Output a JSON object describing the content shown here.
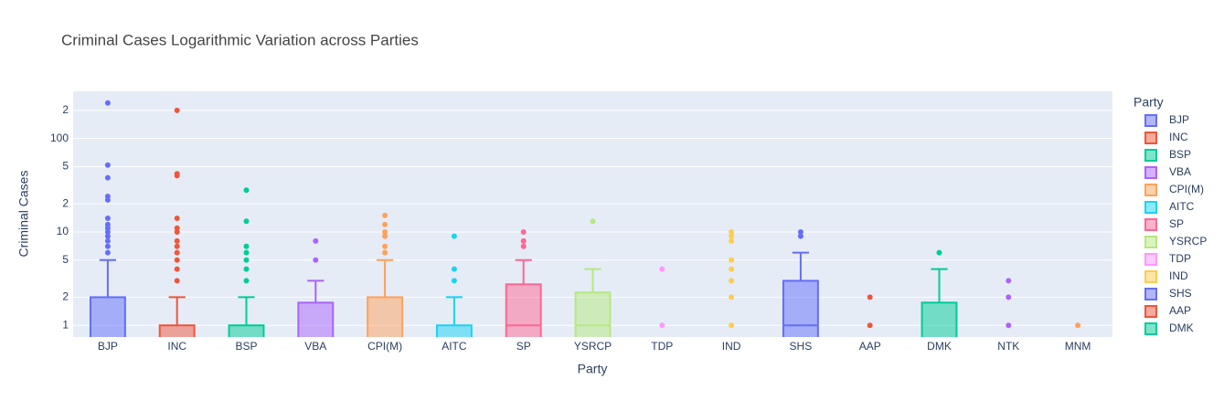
{
  "chart_data": {
    "type": "box",
    "title": "Criminal Cases Logarithmic Variation across Parties",
    "x_label": "Party",
    "y_label": "Criminal Cases",
    "legend_title": "Party",
    "log_y": true,
    "grid": true,
    "ylim": [
      0.75,
      320
    ],
    "yticks": [
      1,
      2,
      5,
      10,
      {
        "value": 20,
        "label": "2"
      },
      {
        "value": 50,
        "label": "5"
      },
      100,
      {
        "value": 200,
        "label": "2"
      }
    ],
    "categories": [
      "BJP",
      "INC",
      "BSP",
      "VBA",
      "CPI(M)",
      "AITC",
      "SP",
      "YSRCP",
      "TDP",
      "IND",
      "SHS",
      "AAP",
      "DMK",
      "NTK",
      "MNM"
    ],
    "series": [
      {
        "name": "BJP",
        "color": "#636efa",
        "lowerfence": 0,
        "q1": 0,
        "median": 0,
        "q3": 2,
        "upperfence": 5,
        "outliers": [
          6,
          7,
          8,
          9,
          10,
          11,
          12,
          14,
          22,
          24,
          38,
          52,
          240
        ]
      },
      {
        "name": "INC",
        "color": "#EF553B",
        "lowerfence": 0,
        "q1": 0,
        "median": 0,
        "q3": 1,
        "upperfence": 2,
        "outliers": [
          3,
          4,
          5,
          6,
          7,
          8,
          10,
          11,
          14,
          40,
          42,
          200
        ]
      },
      {
        "name": "BSP",
        "color": "#00cc96",
        "lowerfence": 0,
        "q1": 0,
        "median": 0,
        "q3": 1,
        "upperfence": 2,
        "outliers": [
          3,
          4,
          5,
          6,
          7,
          13,
          28
        ]
      },
      {
        "name": "VBA",
        "color": "#ab63fa",
        "lowerfence": 0,
        "q1": 0,
        "median": 0,
        "q3": 1.75,
        "upperfence": 3,
        "outliers": [
          5,
          8
        ]
      },
      {
        "name": "CPI(M)",
        "color": "#FFA15A",
        "lowerfence": 0,
        "q1": 0,
        "median": 0,
        "q3": 2,
        "upperfence": 5,
        "outliers": [
          6,
          7,
          9,
          10,
          12,
          15
        ]
      },
      {
        "name": "AITC",
        "color": "#19d3f3",
        "lowerfence": 0,
        "q1": 0,
        "median": 0,
        "q3": 1,
        "upperfence": 2,
        "outliers": [
          3,
          4,
          9
        ]
      },
      {
        "name": "SP",
        "color": "#FF6692",
        "lowerfence": 0,
        "q1": 0,
        "median": 1,
        "q3": 2.75,
        "upperfence": 5,
        "outliers": [
          7,
          8,
          10
        ]
      },
      {
        "name": "YSRCP",
        "color": "#B6E880",
        "lowerfence": 0,
        "q1": 0,
        "median": 1,
        "q3": 2.25,
        "upperfence": 4,
        "outliers": [
          13
        ]
      },
      {
        "name": "TDP",
        "color": "#FF97FF",
        "lowerfence": 0,
        "q1": 0,
        "median": 0,
        "q3": 0,
        "upperfence": 0,
        "outliers": [
          1,
          4
        ]
      },
      {
        "name": "IND",
        "color": "#FECB52",
        "lowerfence": 0,
        "q1": 0,
        "median": 0,
        "q3": 0,
        "upperfence": 0,
        "outliers": [
          1,
          2,
          3,
          4,
          5,
          8,
          9,
          10
        ]
      },
      {
        "name": "SHS",
        "color": "#636efa",
        "lowerfence": 0,
        "q1": 0,
        "median": 1,
        "q3": 3,
        "upperfence": 6,
        "outliers": [
          9,
          10
        ]
      },
      {
        "name": "AAP",
        "color": "#EF553B",
        "lowerfence": 0,
        "q1": 0,
        "median": 0,
        "q3": 0,
        "upperfence": 0,
        "outliers": [
          1,
          2
        ]
      },
      {
        "name": "DMK",
        "color": "#00cc96",
        "lowerfence": 0,
        "q1": 0,
        "median": 0,
        "q3": 1.75,
        "upperfence": 4,
        "outliers": [
          6
        ]
      },
      {
        "name": "NTK",
        "color": "#ab63fa",
        "lowerfence": 0,
        "q1": 0,
        "median": 0,
        "q3": 0,
        "upperfence": 0,
        "outliers": [
          1,
          2,
          3
        ]
      },
      {
        "name": "MNM",
        "color": "#FFA15A",
        "lowerfence": 0,
        "q1": 0,
        "median": 0,
        "q3": 0,
        "upperfence": 0,
        "outliers": [
          1
        ]
      }
    ]
  }
}
